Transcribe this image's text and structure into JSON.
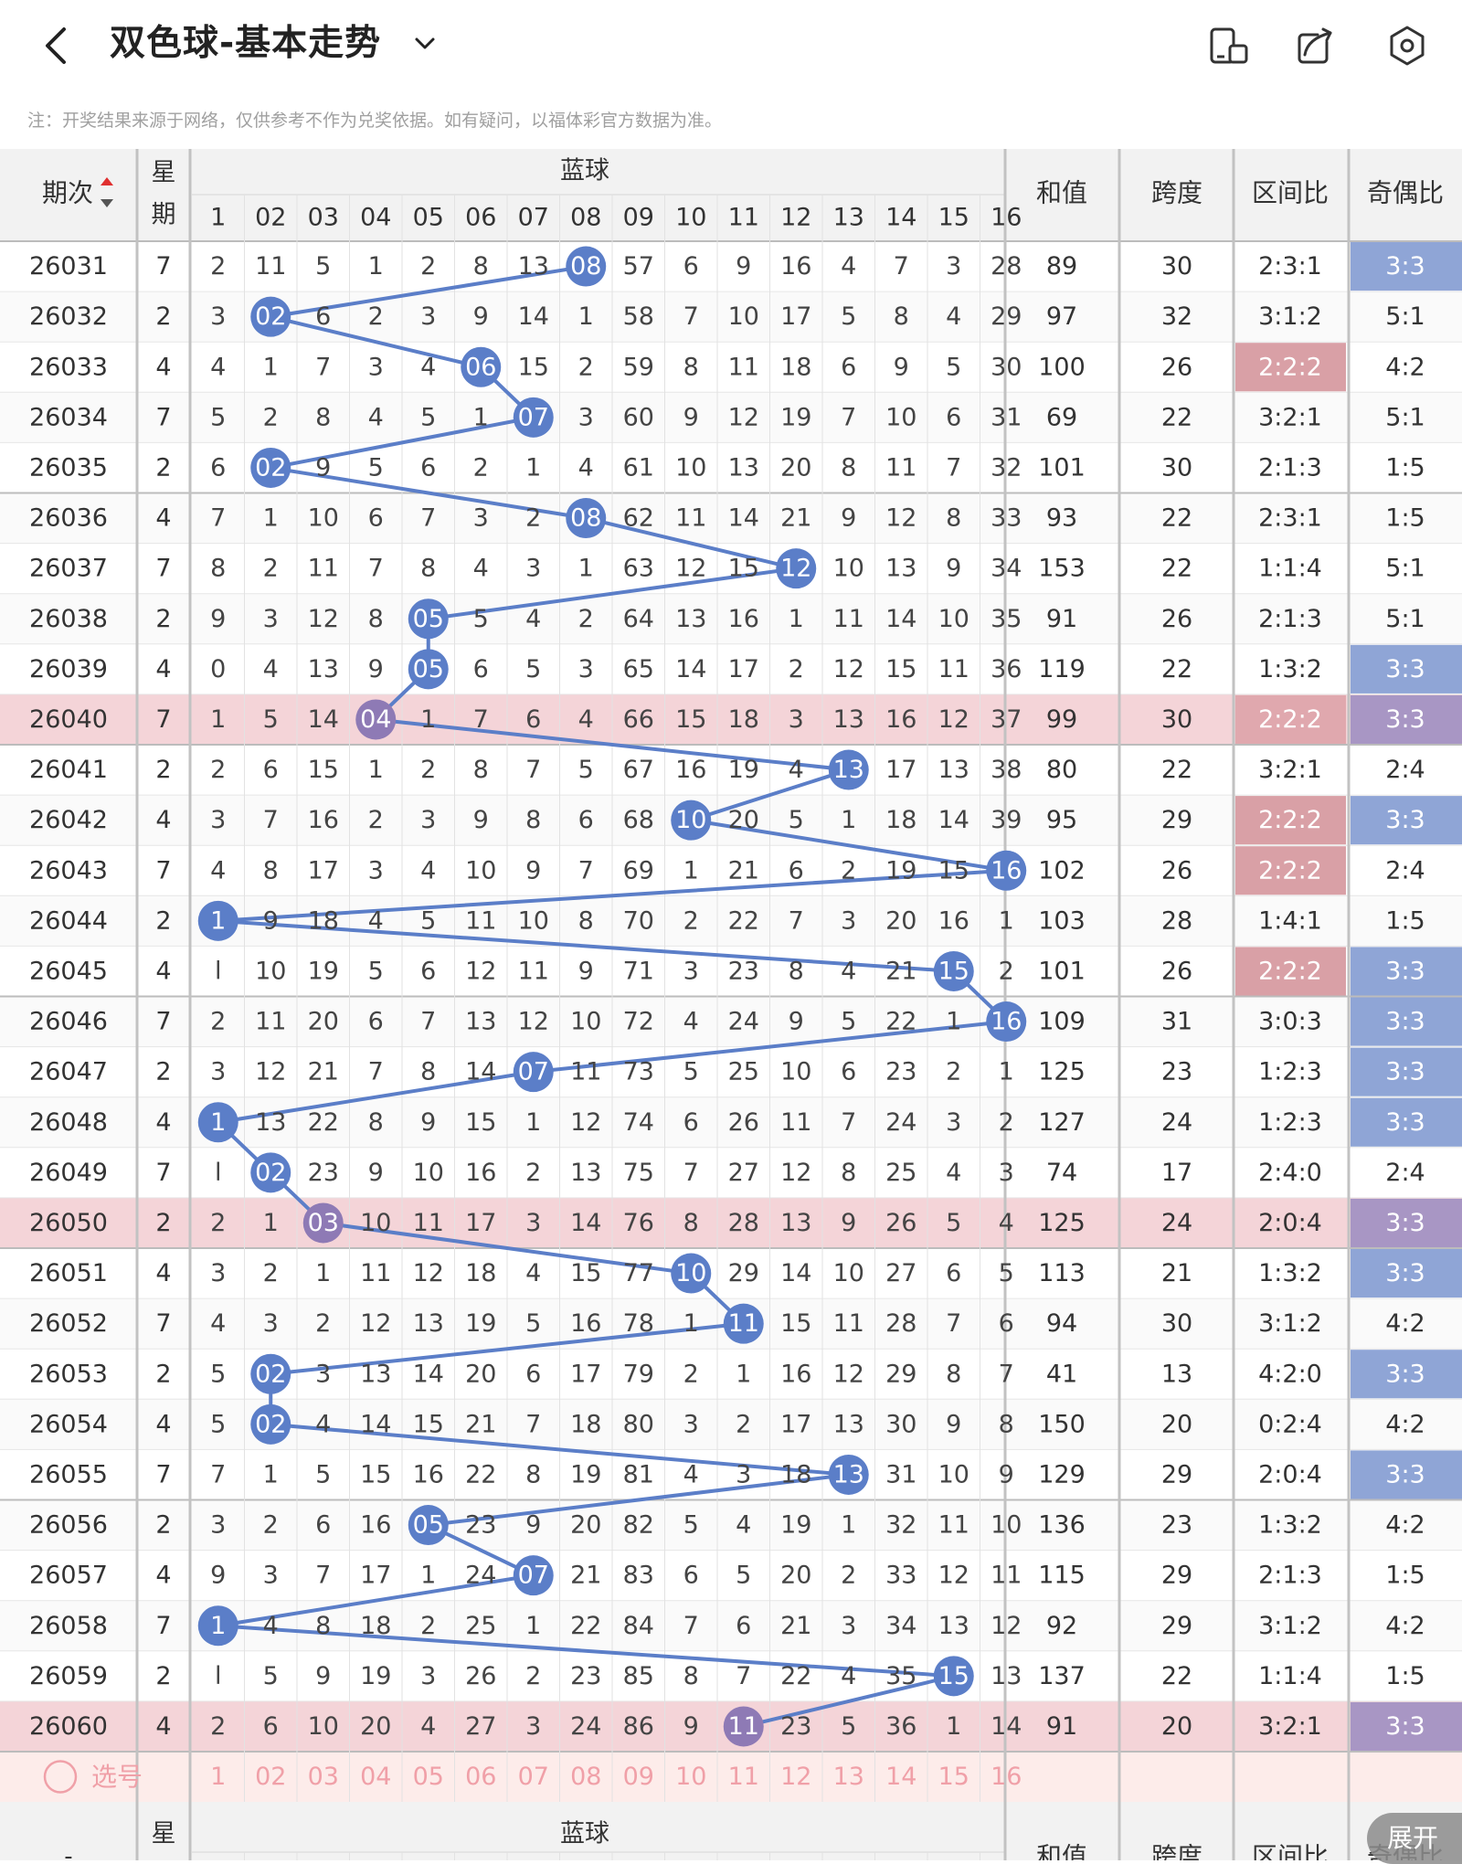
{
  "header": {
    "title": "双色球-基本走势",
    "back_icon": "chevron-left-icon",
    "dropdown_icon": "chevron-down-icon",
    "icons": [
      "phone-rotate-icon",
      "share-icon",
      "settings-icon"
    ]
  },
  "note": "注：开奖结果来源于网络，仅供参考不作为兑奖依据。如有疑问，以福体彩官方数据为准。",
  "table": {
    "col_period": "期次",
    "col_weekday": [
      "星",
      "期"
    ],
    "group_blue": "蓝球",
    "blue_numbers": [
      "1",
      "02",
      "03",
      "04",
      "05",
      "06",
      "07",
      "08",
      "09",
      "10",
      "11",
      "12",
      "13",
      "14",
      "15",
      "16"
    ],
    "col_sum": "和值",
    "col_span": "跨度",
    "col_zone": "区间比",
    "col_odd_even": "奇偶比",
    "rows": [
      {
        "period": "26031",
        "weekday": "7",
        "cells": [
          "2",
          "11",
          "5",
          "1",
          "2",
          "8",
          "13",
          "08",
          "57",
          "6",
          "9",
          "16",
          "4",
          "7",
          "3",
          "28"
        ],
        "hit": 8,
        "sum": "89",
        "span": "30",
        "zone": "2:3:1",
        "oe": "3:3"
      },
      {
        "period": "26032",
        "weekday": "2",
        "cells": [
          "3",
          "02",
          "6",
          "2",
          "3",
          "9",
          "14",
          "1",
          "58",
          "7",
          "10",
          "17",
          "5",
          "8",
          "4",
          "29"
        ],
        "hit": 2,
        "sum": "97",
        "span": "32",
        "zone": "3:1:2",
        "oe": "5:1"
      },
      {
        "period": "26033",
        "weekday": "4",
        "cells": [
          "4",
          "1",
          "7",
          "3",
          "4",
          "06",
          "15",
          "2",
          "59",
          "8",
          "11",
          "18",
          "6",
          "9",
          "5",
          "30"
        ],
        "hit": 6,
        "sum": "100",
        "span": "26",
        "zone": "2:2:2",
        "oe": "4:2"
      },
      {
        "period": "26034",
        "weekday": "7",
        "cells": [
          "5",
          "2",
          "8",
          "4",
          "5",
          "1",
          "07",
          "3",
          "60",
          "9",
          "12",
          "19",
          "7",
          "10",
          "6",
          "31"
        ],
        "hit": 7,
        "sum": "69",
        "span": "22",
        "zone": "3:2:1",
        "oe": "5:1"
      },
      {
        "period": "26035",
        "weekday": "2",
        "cells": [
          "6",
          "02",
          "9",
          "5",
          "6",
          "2",
          "1",
          "4",
          "61",
          "10",
          "13",
          "20",
          "8",
          "11",
          "7",
          "32"
        ],
        "hit": 2,
        "sum": "101",
        "span": "30",
        "zone": "2:1:3",
        "oe": "1:5"
      },
      {
        "period": "26036",
        "weekday": "4",
        "cells": [
          "7",
          "1",
          "10",
          "6",
          "7",
          "3",
          "2",
          "08",
          "62",
          "11",
          "14",
          "21",
          "9",
          "12",
          "8",
          "33"
        ],
        "hit": 8,
        "sum": "93",
        "span": "22",
        "zone": "2:3:1",
        "oe": "1:5"
      },
      {
        "period": "26037",
        "weekday": "7",
        "cells": [
          "8",
          "2",
          "11",
          "7",
          "8",
          "4",
          "3",
          "1",
          "63",
          "12",
          "15",
          "12",
          "10",
          "13",
          "9",
          "34"
        ],
        "hit": 12,
        "sum": "153",
        "span": "22",
        "zone": "1:1:4",
        "oe": "5:1"
      },
      {
        "period": "26038",
        "weekday": "2",
        "cells": [
          "9",
          "3",
          "12",
          "8",
          "05",
          "5",
          "4",
          "2",
          "64",
          "13",
          "16",
          "1",
          "11",
          "14",
          "10",
          "35"
        ],
        "hit": 5,
        "sum": "91",
        "span": "26",
        "zone": "2:1:3",
        "oe": "5:1"
      },
      {
        "period": "26039",
        "weekday": "4",
        "cells": [
          "0",
          "4",
          "13",
          "9",
          "05",
          "6",
          "5",
          "3",
          "65",
          "14",
          "17",
          "2",
          "12",
          "15",
          "11",
          "36"
        ],
        "hit": 5,
        "sum": "119",
        "span": "22",
        "zone": "1:3:2",
        "oe": "3:3"
      },
      {
        "period": "26040",
        "weekday": "7",
        "cells": [
          "1",
          "5",
          "14",
          "04",
          "1",
          "7",
          "6",
          "4",
          "66",
          "15",
          "18",
          "3",
          "13",
          "16",
          "12",
          "37"
        ],
        "hit": 4,
        "sum": "99",
        "span": "30",
        "zone": "2:2:2",
        "oe": "3:3"
      },
      {
        "period": "26041",
        "weekday": "2",
        "cells": [
          "2",
          "6",
          "15",
          "1",
          "2",
          "8",
          "7",
          "5",
          "67",
          "16",
          "19",
          "4",
          "13",
          "17",
          "13",
          "38"
        ],
        "hit": 13,
        "sum": "80",
        "span": "22",
        "zone": "3:2:1",
        "oe": "2:4"
      },
      {
        "period": "26042",
        "weekday": "4",
        "cells": [
          "3",
          "7",
          "16",
          "2",
          "3",
          "9",
          "8",
          "6",
          "68",
          "10",
          "20",
          "5",
          "1",
          "18",
          "14",
          "39"
        ],
        "hit": 10,
        "sum": "95",
        "span": "29",
        "zone": "2:2:2",
        "oe": "3:3"
      },
      {
        "period": "26043",
        "weekday": "7",
        "cells": [
          "4",
          "8",
          "17",
          "3",
          "4",
          "10",
          "9",
          "7",
          "69",
          "1",
          "21",
          "6",
          "2",
          "19",
          "15",
          "16"
        ],
        "hit": 16,
        "sum": "102",
        "span": "26",
        "zone": "2:2:2",
        "oe": "2:4"
      },
      {
        "period": "26044",
        "weekday": "2",
        "cells": [
          "1",
          "9",
          "18",
          "4",
          "5",
          "11",
          "10",
          "8",
          "70",
          "2",
          "22",
          "7",
          "3",
          "20",
          "16",
          "1"
        ],
        "hit": 1,
        "sum": "103",
        "span": "28",
        "zone": "1:4:1",
        "oe": "1:5"
      },
      {
        "period": "26045",
        "weekday": "4",
        "cells": [
          "l",
          "10",
          "19",
          "5",
          "6",
          "12",
          "11",
          "9",
          "71",
          "3",
          "23",
          "8",
          "4",
          "21",
          "15",
          "2"
        ],
        "hit": 15,
        "sum": "101",
        "span": "26",
        "zone": "2:2:2",
        "oe": "3:3"
      },
      {
        "period": "26046",
        "weekday": "7",
        "cells": [
          "2",
          "11",
          "20",
          "6",
          "7",
          "13",
          "12",
          "10",
          "72",
          "4",
          "24",
          "9",
          "5",
          "22",
          "1",
          "16"
        ],
        "hit": 16,
        "sum": "109",
        "span": "31",
        "zone": "3:0:3",
        "oe": "3:3"
      },
      {
        "period": "26047",
        "weekday": "2",
        "cells": [
          "3",
          "12",
          "21",
          "7",
          "8",
          "14",
          "07",
          "11",
          "73",
          "5",
          "25",
          "10",
          "6",
          "23",
          "2",
          "1"
        ],
        "hit": 7,
        "sum": "125",
        "span": "23",
        "zone": "1:2:3",
        "oe": "3:3"
      },
      {
        "period": "26048",
        "weekday": "4",
        "cells": [
          "1",
          "13",
          "22",
          "8",
          "9",
          "15",
          "1",
          "12",
          "74",
          "6",
          "26",
          "11",
          "7",
          "24",
          "3",
          "2"
        ],
        "hit": 1,
        "sum": "127",
        "span": "24",
        "zone": "1:2:3",
        "oe": "3:3"
      },
      {
        "period": "26049",
        "weekday": "7",
        "cells": [
          "l",
          "02",
          "23",
          "9",
          "10",
          "16",
          "2",
          "13",
          "75",
          "7",
          "27",
          "12",
          "8",
          "25",
          "4",
          "3"
        ],
        "hit": 2,
        "sum": "74",
        "span": "17",
        "zone": "2:4:0",
        "oe": "2:4"
      },
      {
        "period": "26050",
        "weekday": "2",
        "cells": [
          "2",
          "1",
          "03",
          "10",
          "11",
          "17",
          "3",
          "14",
          "76",
          "8",
          "28",
          "13",
          "9",
          "26",
          "5",
          "4"
        ],
        "hit": 3,
        "sum": "125",
        "span": "24",
        "zone": "2:0:4",
        "oe": "3:3"
      },
      {
        "period": "26051",
        "weekday": "4",
        "cells": [
          "3",
          "2",
          "1",
          "11",
          "12",
          "18",
          "4",
          "15",
          "77",
          "10",
          "29",
          "14",
          "10",
          "27",
          "6",
          "5"
        ],
        "hit": 10,
        "sum": "113",
        "span": "21",
        "zone": "1:3:2",
        "oe": "3:3"
      },
      {
        "period": "26052",
        "weekday": "7",
        "cells": [
          "4",
          "3",
          "2",
          "12",
          "13",
          "19",
          "5",
          "16",
          "78",
          "1",
          "11",
          "15",
          "11",
          "28",
          "7",
          "6"
        ],
        "hit": 11,
        "sum": "94",
        "span": "30",
        "zone": "3:1:2",
        "oe": "4:2"
      },
      {
        "period": "26053",
        "weekday": "2",
        "cells": [
          "5",
          "02",
          "3",
          "13",
          "14",
          "20",
          "6",
          "17",
          "79",
          "2",
          "1",
          "16",
          "12",
          "29",
          "8",
          "7"
        ],
        "hit": 2,
        "sum": "41",
        "span": "13",
        "zone": "4:2:0",
        "oe": "3:3"
      },
      {
        "period": "26054",
        "weekday": "4",
        "cells": [
          "5",
          "02",
          "4",
          "14",
          "15",
          "21",
          "7",
          "18",
          "80",
          "3",
          "2",
          "17",
          "13",
          "30",
          "9",
          "8"
        ],
        "hit": 2,
        "sum": "150",
        "span": "20",
        "zone": "0:2:4",
        "oe": "4:2"
      },
      {
        "period": "26055",
        "weekday": "7",
        "cells": [
          "7",
          "1",
          "5",
          "15",
          "16",
          "22",
          "8",
          "19",
          "81",
          "4",
          "3",
          "18",
          "13",
          "31",
          "10",
          "9"
        ],
        "hit": 13,
        "sum": "129",
        "span": "29",
        "zone": "2:0:4",
        "oe": "3:3"
      },
      {
        "period": "26056",
        "weekday": "2",
        "cells": [
          "3",
          "2",
          "6",
          "16",
          "05",
          "23",
          "9",
          "20",
          "82",
          "5",
          "4",
          "19",
          "1",
          "32",
          "11",
          "10"
        ],
        "hit": 5,
        "sum": "136",
        "span": "23",
        "zone": "1:3:2",
        "oe": "4:2"
      },
      {
        "period": "26057",
        "weekday": "4",
        "cells": [
          "9",
          "3",
          "7",
          "17",
          "1",
          "24",
          "07",
          "21",
          "83",
          "6",
          "5",
          "20",
          "2",
          "33",
          "12",
          "11"
        ],
        "hit": 7,
        "sum": "115",
        "span": "29",
        "zone": "2:1:3",
        "oe": "1:5"
      },
      {
        "period": "26058",
        "weekday": "7",
        "cells": [
          "1",
          "4",
          "8",
          "18",
          "2",
          "25",
          "1",
          "22",
          "84",
          "7",
          "6",
          "21",
          "3",
          "34",
          "13",
          "12"
        ],
        "hit": 1,
        "sum": "92",
        "span": "29",
        "zone": "3:1:2",
        "oe": "4:2"
      },
      {
        "period": "26059",
        "weekday": "2",
        "cells": [
          "l",
          "5",
          "9",
          "19",
          "3",
          "26",
          "2",
          "23",
          "85",
          "8",
          "7",
          "22",
          "4",
          "35",
          "15",
          "13"
        ],
        "hit": 15,
        "sum": "137",
        "span": "22",
        "zone": "1:1:4",
        "oe": "1:5"
      },
      {
        "period": "26060",
        "weekday": "4",
        "cells": [
          "2",
          "6",
          "10",
          "20",
          "4",
          "27",
          "3",
          "24",
          "86",
          "9",
          "11",
          "23",
          "5",
          "36",
          "1",
          "14"
        ],
        "hit": 11,
        "sum": "91",
        "span": "20",
        "zone": "3:2:1",
        "oe": "3:3"
      }
    ],
    "highlight_rows": [
      "26040",
      "26050",
      "26060"
    ],
    "zone_highlight_rows": [
      "26033",
      "26040",
      "26042",
      "26043",
      "26045"
    ],
    "oe_highlight_rows": [
      "26031",
      "26039",
      "26040",
      "26042",
      "26045",
      "26046",
      "26047",
      "26048",
      "26050",
      "26051",
      "26053",
      "26055",
      "26060"
    ],
    "select_label": "选号",
    "footer_period": "-",
    "expand_label": "展开"
  },
  "colors": {
    "ball_blue": "#5b7ec8",
    "ball_purple": "#8e7ab5",
    "line_blue": "#5b7ec8",
    "row_highlight": "#f4d4d8",
    "zone_badge": "#d9a0a6",
    "zone_badge_row": "#e0a8ae",
    "oe_badge": "#8fa5d6",
    "oe_badge_row": "#a896c4",
    "select_text": "#f0a0a8",
    "select_bg": "#fdecea",
    "header_bg": "#f2f2f2"
  }
}
